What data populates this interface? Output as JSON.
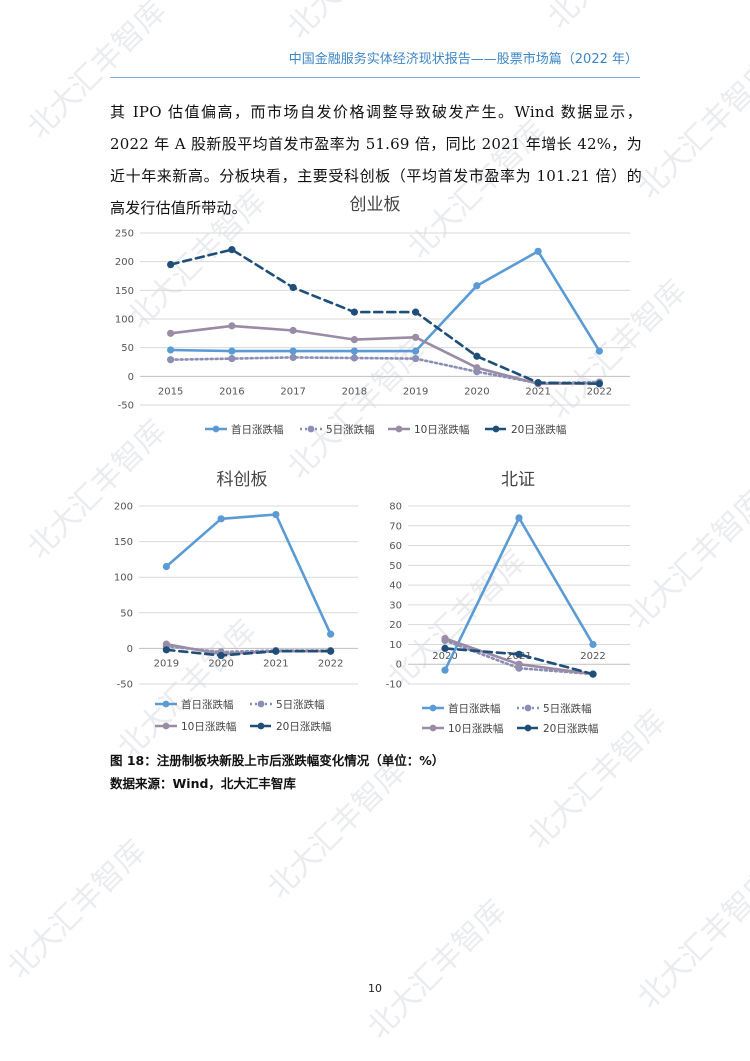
{
  "header": {
    "title": "中国金融服务实体经济现状报告——股票市场篇（2022 年）"
  },
  "body": {
    "paragraph": "其 IPO 估值偏高，而市场自发价格调整导致破发产生。Wind 数据显示，2022 年 A 股新股平均首发市盈率为 51.69 倍，同比 2021 年增长 42%，为近十年来新高。分板块看，主要受科创板（平均首发市盈率为 101.21 倍）的高发行估值所带动。"
  },
  "figure": {
    "caption": "图 18：注册制板块新股上市后涨跌幅变化情况（单位：%）",
    "source": "数据来源：Wind，北大汇丰智库"
  },
  "page_number": "10",
  "watermark": {
    "text": "北大汇丰智库"
  },
  "series_styles": [
    {
      "name": "首日涨跌幅",
      "color": "#5b9bd5",
      "dash": "solid"
    },
    {
      "name": "5日涨跌幅",
      "color": "#8b8fb5",
      "dash": "dotted"
    },
    {
      "name": "10日涨跌幅",
      "color": "#9b8ca6",
      "dash": "solid"
    },
    {
      "name": "20日涨跌幅",
      "color": "#1f4e79",
      "dash": "dashed"
    }
  ],
  "chart_data": [
    {
      "type": "line",
      "title": "创业板",
      "categories": [
        "2015",
        "2016",
        "2017",
        "2018",
        "2019",
        "2020",
        "2021",
        "2022"
      ],
      "ylim": [
        -50,
        250
      ],
      "yticks": [
        -50,
        0,
        50,
        100,
        150,
        200,
        250
      ],
      "grid": true,
      "legend": "bottom",
      "series": [
        {
          "name": "首日涨跌幅",
          "values": [
            46,
            44,
            44,
            44,
            44,
            158,
            218,
            44
          ]
        },
        {
          "name": "5日涨跌幅",
          "values": [
            29,
            31,
            33,
            32,
            31,
            8,
            -12,
            -10
          ]
        },
        {
          "name": "10日涨跌幅",
          "values": [
            75,
            88,
            80,
            64,
            68,
            15,
            -13,
            -12
          ]
        },
        {
          "name": "20日涨跌幅",
          "values": [
            195,
            221,
            155,
            112,
            112,
            35,
            -11,
            -13
          ]
        }
      ]
    },
    {
      "type": "line",
      "title": "科创板",
      "categories": [
        "2019",
        "2020",
        "2021",
        "2022"
      ],
      "ylim": [
        -50,
        200
      ],
      "yticks": [
        -50,
        0,
        50,
        100,
        150,
        200
      ],
      "grid": true,
      "legend": "bottom",
      "series": [
        {
          "name": "首日涨跌幅",
          "values": [
            115,
            182,
            188,
            20
          ]
        },
        {
          "name": "5日涨跌幅",
          "values": [
            3,
            -5,
            -3,
            -3
          ]
        },
        {
          "name": "10日涨跌幅",
          "values": [
            6,
            -8,
            -4,
            -4
          ]
        },
        {
          "name": "20日涨跌幅",
          "values": [
            -2,
            -10,
            -4,
            -4
          ]
        }
      ]
    },
    {
      "type": "line",
      "title": "北证",
      "categories": [
        "2020",
        "2021",
        "2022"
      ],
      "ylim": [
        -10,
        80
      ],
      "yticks": [
        -10,
        0,
        10,
        20,
        30,
        40,
        50,
        60,
        70,
        80
      ],
      "grid": true,
      "legend": "bottom",
      "series": [
        {
          "name": "首日涨跌幅",
          "values": [
            -3,
            74,
            10
          ]
        },
        {
          "name": "5日涨跌幅",
          "values": [
            12,
            -2,
            -5
          ]
        },
        {
          "name": "10日涨跌幅",
          "values": [
            13,
            0,
            -5
          ]
        },
        {
          "name": "20日涨跌幅",
          "values": [
            8,
            5,
            -5
          ]
        }
      ]
    }
  ]
}
